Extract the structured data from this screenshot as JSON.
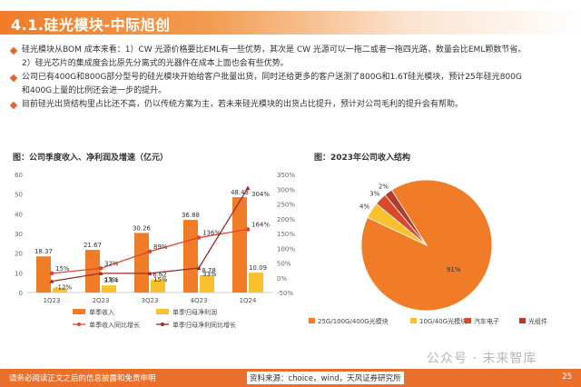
{
  "page": {
    "title": "4.1.硅光模块-中际旭创",
    "bullets": [
      "硅光模块从BOM 成本来看：1）CW 光源价格要比EML有一些优势，其次是 CW 光源可以一拖二或者一拖四光路，数量会比EML颗数节省。",
      "2）硅光芯片的集成度会比原先分离式的光器件在成本上面也会有些优势。",
      "公司已有400G和800G部分型号的硅光模块开始给客户批量出货，同时还给更多的客户送测了800G和1.6T硅光模块，预计25年硅光800G",
      "和400G上量的比例还会进一步的提升。",
      "目前硅光出货结构里占比还不高，仍以传统方案为主，若未来硅光模块的出货占比提升，预计对公司毛利的提升会有帮助。"
    ],
    "footer_left": "请务必阅读正文之后的信息披露和免责申明",
    "footer_source": "资料来源：choice，wind，天风证券研究所",
    "footer_page": "25",
    "watermark": "公众号 · 未来智库",
    "colors": {
      "accent": "#e9712b",
      "bar_revenue": "#f07c28",
      "bar_profit": "#fbc02d",
      "line_dark": "#9e2b25",
      "line_red": "#e0452e"
    }
  },
  "chart_data": [
    {
      "type": "bar",
      "title": "图：公司季度收入、净利润及增速（亿元）",
      "categories": [
        "1Q23",
        "2Q23",
        "3Q23",
        "4Q23",
        "1Q24"
      ],
      "series": [
        {
          "name": "单季收入",
          "kind": "bar",
          "axis": "left",
          "values": [
            18.37,
            21.67,
            30.26,
            36.88,
            48.43
          ]
        },
        {
          "name": "单季归母净利润",
          "kind": "bar",
          "axis": "left",
          "values": [
            2.36,
            3.64,
            6.62,
            8.78,
            10.09
          ]
        },
        {
          "name": "单季收入同比增长",
          "kind": "line",
          "axis": "right",
          "values": [
            15,
            32,
            89,
            136,
            164
          ]
        },
        {
          "name": "单季归母净利同比增长",
          "kind": "line",
          "axis": "right",
          "values": [
            -12,
            15,
            15,
            33,
            304
          ]
        }
      ],
      "left_ylim": [
        0,
        60
      ],
      "left_ticks": [
        "0",
        "10",
        "20",
        "30",
        "40",
        "50",
        "60"
      ],
      "right_ylim": [
        -50,
        350
      ],
      "right_ticks": [
        "-50%",
        "0%",
        "50%",
        "100%",
        "150%",
        "200%",
        "250%",
        "300%",
        "350%"
      ],
      "bar_labels": [
        "18.37",
        "21.67",
        "30.26",
        "36.88",
        "48.43"
      ],
      "profit_labels": [
        "",
        "3.64",
        "6.62",
        "8.78",
        "10.09"
      ],
      "line_labels_revenue": [
        "15%",
        "32%",
        "89%",
        "136%",
        "164%"
      ],
      "line_labels_profit": [
        "-12%",
        "15%",
        "15%",
        "33%",
        "304%"
      ],
      "legend": [
        "单季收入",
        "单季归母净利润",
        "单季收入同比增长",
        "单季归母净利同比增长"
      ],
      "legend_position": "bottom"
    },
    {
      "type": "pie",
      "title": "图：2023年公司收入结构",
      "labels": [
        "25G/100G/400G光模块",
        "10G/40G光模块",
        "汽车电子",
        "光组件"
      ],
      "values": [
        91,
        4,
        3,
        2
      ],
      "value_labels": [
        "91%",
        "4%",
        "3%",
        "2%"
      ],
      "colors": [
        "#f07c28",
        "#fbc02d",
        "#d94a2b",
        "#b23a2e"
      ],
      "legend_position": "bottom"
    }
  ]
}
